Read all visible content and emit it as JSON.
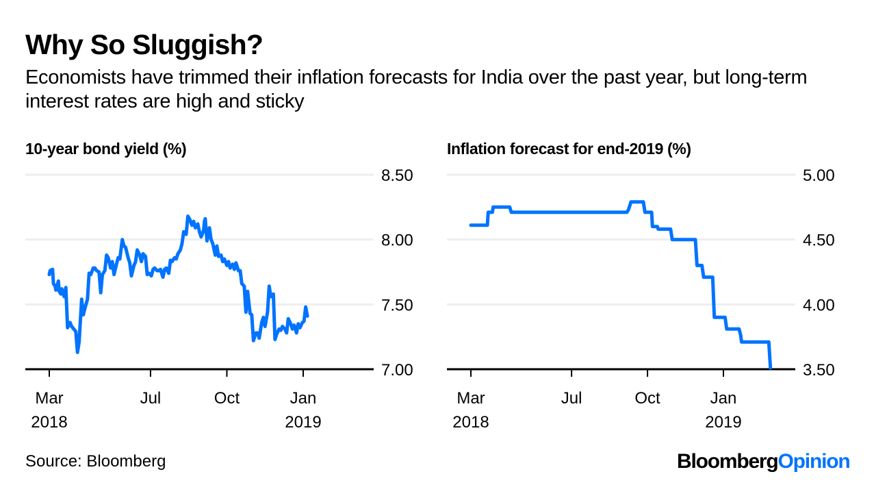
{
  "header": {
    "title": "Why So Sluggish?",
    "subtitle": "Economists have trimmed their inflation forecasts for India over the past year, but long-term interest rates are high and sticky"
  },
  "footer": {
    "source": "Source: Bloomberg",
    "logo_part1": "Bloomberg",
    "logo_part2": "Opinion"
  },
  "colors": {
    "line": "#0073ff",
    "grid": "#eeeeee",
    "axis": "#000000"
  },
  "chart_data": [
    {
      "type": "line",
      "title": "10-year bond yield (%)",
      "xlabel": "",
      "ylabel": "",
      "ylim": [
        7.0,
        8.5
      ],
      "yticks": [
        "8.50",
        "8.00",
        "7.50",
        "7.00"
      ],
      "ytick_values": [
        8.5,
        8.0,
        7.5,
        7.0
      ],
      "xticks": [
        {
          "label": "Mar",
          "sublabel": "2018",
          "date": "2018-03-01"
        },
        {
          "label": "Jul",
          "sublabel": "",
          "date": "2018-07-01"
        },
        {
          "label": "Oct",
          "sublabel": "",
          "date": "2018-10-01"
        },
        {
          "label": "Jan",
          "sublabel": "2019",
          "date": "2019-01-01"
        }
      ],
      "grid": true,
      "series": [
        {
          "name": "10-year bond yield",
          "points": [
            [
              "2018-03-01",
              7.73
            ],
            [
              "2018-03-02",
              7.76
            ],
            [
              "2018-03-05",
              7.77
            ],
            [
              "2018-03-06",
              7.66
            ],
            [
              "2018-03-08",
              7.64
            ],
            [
              "2018-03-09",
              7.61
            ],
            [
              "2018-03-12",
              7.68
            ],
            [
              "2018-03-13",
              7.6
            ],
            [
              "2018-03-15",
              7.58
            ],
            [
              "2018-03-16",
              7.62
            ],
            [
              "2018-03-19",
              7.56
            ],
            [
              "2018-03-21",
              7.63
            ],
            [
              "2018-03-23",
              7.32
            ],
            [
              "2018-03-26",
              7.36
            ],
            [
              "2018-03-28",
              7.33
            ],
            [
              "2018-04-02",
              7.29
            ],
            [
              "2018-04-04",
              7.13
            ],
            [
              "2018-04-06",
              7.21
            ],
            [
              "2018-04-09",
              7.54
            ],
            [
              "2018-04-11",
              7.42
            ],
            [
              "2018-04-13",
              7.47
            ],
            [
              "2018-04-16",
              7.54
            ],
            [
              "2018-04-18",
              7.74
            ],
            [
              "2018-04-20",
              7.73
            ],
            [
              "2018-04-23",
              7.78
            ],
            [
              "2018-04-25",
              7.78
            ],
            [
              "2018-04-27",
              7.76
            ],
            [
              "2018-04-30",
              7.75
            ],
            [
              "2018-05-02",
              7.59
            ],
            [
              "2018-05-04",
              7.73
            ],
            [
              "2018-05-07",
              7.76
            ],
            [
              "2018-05-09",
              7.88
            ],
            [
              "2018-05-11",
              7.86
            ],
            [
              "2018-05-14",
              7.78
            ],
            [
              "2018-05-16",
              7.83
            ],
            [
              "2018-05-18",
              7.73
            ],
            [
              "2018-05-21",
              7.81
            ],
            [
              "2018-05-23",
              7.86
            ],
            [
              "2018-05-25",
              7.85
            ],
            [
              "2018-05-28",
              8.0
            ],
            [
              "2018-05-30",
              7.95
            ],
            [
              "2018-06-01",
              7.94
            ],
            [
              "2018-06-04",
              7.86
            ],
            [
              "2018-06-06",
              7.82
            ],
            [
              "2018-06-08",
              7.72
            ],
            [
              "2018-06-11",
              7.8
            ],
            [
              "2018-06-13",
              7.83
            ],
            [
              "2018-06-15",
              7.92
            ],
            [
              "2018-06-18",
              7.88
            ],
            [
              "2018-06-20",
              7.83
            ],
            [
              "2018-06-22",
              7.89
            ],
            [
              "2018-06-25",
              7.87
            ],
            [
              "2018-06-27",
              7.73
            ],
            [
              "2018-06-29",
              7.74
            ],
            [
              "2018-07-02",
              7.72
            ],
            [
              "2018-07-04",
              7.77
            ],
            [
              "2018-07-06",
              7.78
            ],
            [
              "2018-07-09",
              7.76
            ],
            [
              "2018-07-11",
              7.76
            ],
            [
              "2018-07-13",
              7.77
            ],
            [
              "2018-07-16",
              7.71
            ],
            [
              "2018-07-18",
              7.77
            ],
            [
              "2018-07-20",
              7.78
            ],
            [
              "2018-07-23",
              7.74
            ],
            [
              "2018-07-25",
              7.84
            ],
            [
              "2018-07-27",
              7.83
            ],
            [
              "2018-07-30",
              7.86
            ],
            [
              "2018-08-01",
              7.85
            ],
            [
              "2018-08-03",
              7.89
            ],
            [
              "2018-08-06",
              7.92
            ],
            [
              "2018-08-08",
              7.97
            ],
            [
              "2018-08-10",
              8.06
            ],
            [
              "2018-08-13",
              8.04
            ],
            [
              "2018-08-15",
              8.18
            ],
            [
              "2018-08-17",
              8.16
            ],
            [
              "2018-08-20",
              8.11
            ],
            [
              "2018-08-22",
              8.14
            ],
            [
              "2018-08-24",
              8.09
            ],
            [
              "2018-08-27",
              8.12
            ],
            [
              "2018-08-29",
              8.06
            ],
            [
              "2018-08-31",
              8.02
            ],
            [
              "2018-09-03",
              8.07
            ],
            [
              "2018-09-04",
              8.14
            ],
            [
              "2018-09-05",
              8.16
            ],
            [
              "2018-09-07",
              7.99
            ],
            [
              "2018-09-10",
              8.09
            ],
            [
              "2018-09-12",
              8.0
            ],
            [
              "2018-09-14",
              7.97
            ],
            [
              "2018-09-17",
              7.88
            ],
            [
              "2018-09-19",
              7.95
            ],
            [
              "2018-09-21",
              7.87
            ],
            [
              "2018-09-24",
              7.88
            ],
            [
              "2018-09-26",
              7.83
            ],
            [
              "2018-09-28",
              7.85
            ],
            [
              "2018-10-01",
              7.8
            ],
            [
              "2018-10-03",
              7.83
            ],
            [
              "2018-10-05",
              7.78
            ],
            [
              "2018-10-08",
              7.81
            ],
            [
              "2018-10-10",
              7.77
            ],
            [
              "2018-10-12",
              7.82
            ],
            [
              "2018-10-15",
              7.76
            ],
            [
              "2018-10-17",
              7.76
            ],
            [
              "2018-10-19",
              7.66
            ],
            [
              "2018-10-22",
              7.64
            ],
            [
              "2018-10-24",
              7.44
            ],
            [
              "2018-10-26",
              7.6
            ],
            [
              "2018-10-29",
              7.43
            ],
            [
              "2018-10-31",
              7.42
            ],
            [
              "2018-11-02",
              7.22
            ],
            [
              "2018-11-05",
              7.28
            ],
            [
              "2018-11-07",
              7.28
            ],
            [
              "2018-11-09",
              7.24
            ],
            [
              "2018-11-12",
              7.36
            ],
            [
              "2018-11-14",
              7.4
            ],
            [
              "2018-11-16",
              7.33
            ],
            [
              "2018-11-19",
              7.44
            ],
            [
              "2018-11-21",
              7.64
            ],
            [
              "2018-11-23",
              7.56
            ],
            [
              "2018-11-26",
              7.58
            ],
            [
              "2018-11-28",
              7.23
            ],
            [
              "2018-11-30",
              7.27
            ],
            [
              "2018-12-03",
              7.31
            ],
            [
              "2018-12-05",
              7.3
            ],
            [
              "2018-12-07",
              7.33
            ],
            [
              "2018-12-10",
              7.31
            ],
            [
              "2018-12-12",
              7.28
            ],
            [
              "2018-12-14",
              7.39
            ],
            [
              "2018-12-17",
              7.35
            ],
            [
              "2018-12-19",
              7.31
            ],
            [
              "2018-12-21",
              7.34
            ],
            [
              "2018-12-24",
              7.28
            ],
            [
              "2018-12-26",
              7.35
            ],
            [
              "2018-12-28",
              7.32
            ],
            [
              "2018-12-31",
              7.36
            ],
            [
              "2019-01-02",
              7.37
            ],
            [
              "2019-01-04",
              7.48
            ],
            [
              "2019-01-06",
              7.41
            ]
          ]
        }
      ]
    },
    {
      "type": "line",
      "title": "Inflation forecast for end-2019 (%)",
      "xlabel": "",
      "ylabel": "",
      "ylim": [
        3.5,
        5.0
      ],
      "yticks": [
        "5.00",
        "4.50",
        "4.00",
        "3.50"
      ],
      "ytick_values": [
        5.0,
        4.5,
        4.0,
        3.5
      ],
      "xticks": [
        {
          "label": "Mar",
          "sublabel": "2018",
          "date": "2018-03-01"
        },
        {
          "label": "Jul",
          "sublabel": "",
          "date": "2018-07-01"
        },
        {
          "label": "Oct",
          "sublabel": "",
          "date": "2018-10-01"
        },
        {
          "label": "Jan",
          "sublabel": "2019",
          "date": "2019-01-01"
        }
      ],
      "grid": true,
      "series": [
        {
          "name": "Inflation forecast for end-2019",
          "points": [
            [
              "2018-03-01",
              4.61
            ],
            [
              "2018-03-21",
              4.61
            ],
            [
              "2018-03-22",
              4.71
            ],
            [
              "2018-03-27",
              4.71
            ],
            [
              "2018-03-28",
              4.75
            ],
            [
              "2018-04-17",
              4.75
            ],
            [
              "2018-04-19",
              4.71
            ],
            [
              "2018-09-06",
              4.71
            ],
            [
              "2018-09-08",
              4.73
            ],
            [
              "2018-09-11",
              4.79
            ],
            [
              "2018-09-26",
              4.79
            ],
            [
              "2018-09-28",
              4.71
            ],
            [
              "2018-10-06",
              4.71
            ],
            [
              "2018-10-07",
              4.6
            ],
            [
              "2018-10-13",
              4.6
            ],
            [
              "2018-10-14",
              4.58
            ],
            [
              "2018-10-29",
              4.58
            ],
            [
              "2018-10-31",
              4.5
            ],
            [
              "2018-11-28",
              4.5
            ],
            [
              "2018-11-30",
              4.3
            ],
            [
              "2018-12-06",
              4.3
            ],
            [
              "2018-12-08",
              4.21
            ],
            [
              "2018-12-19",
              4.21
            ],
            [
              "2018-12-21",
              3.9
            ],
            [
              "2019-01-03",
              3.9
            ],
            [
              "2019-01-05",
              3.81
            ],
            [
              "2019-01-20",
              3.81
            ],
            [
              "2019-01-22",
              3.76
            ],
            [
              "2019-01-23",
              3.71
            ],
            [
              "2019-02-25",
              3.71
            ],
            [
              "2019-02-27",
              3.51
            ]
          ]
        }
      ]
    }
  ]
}
